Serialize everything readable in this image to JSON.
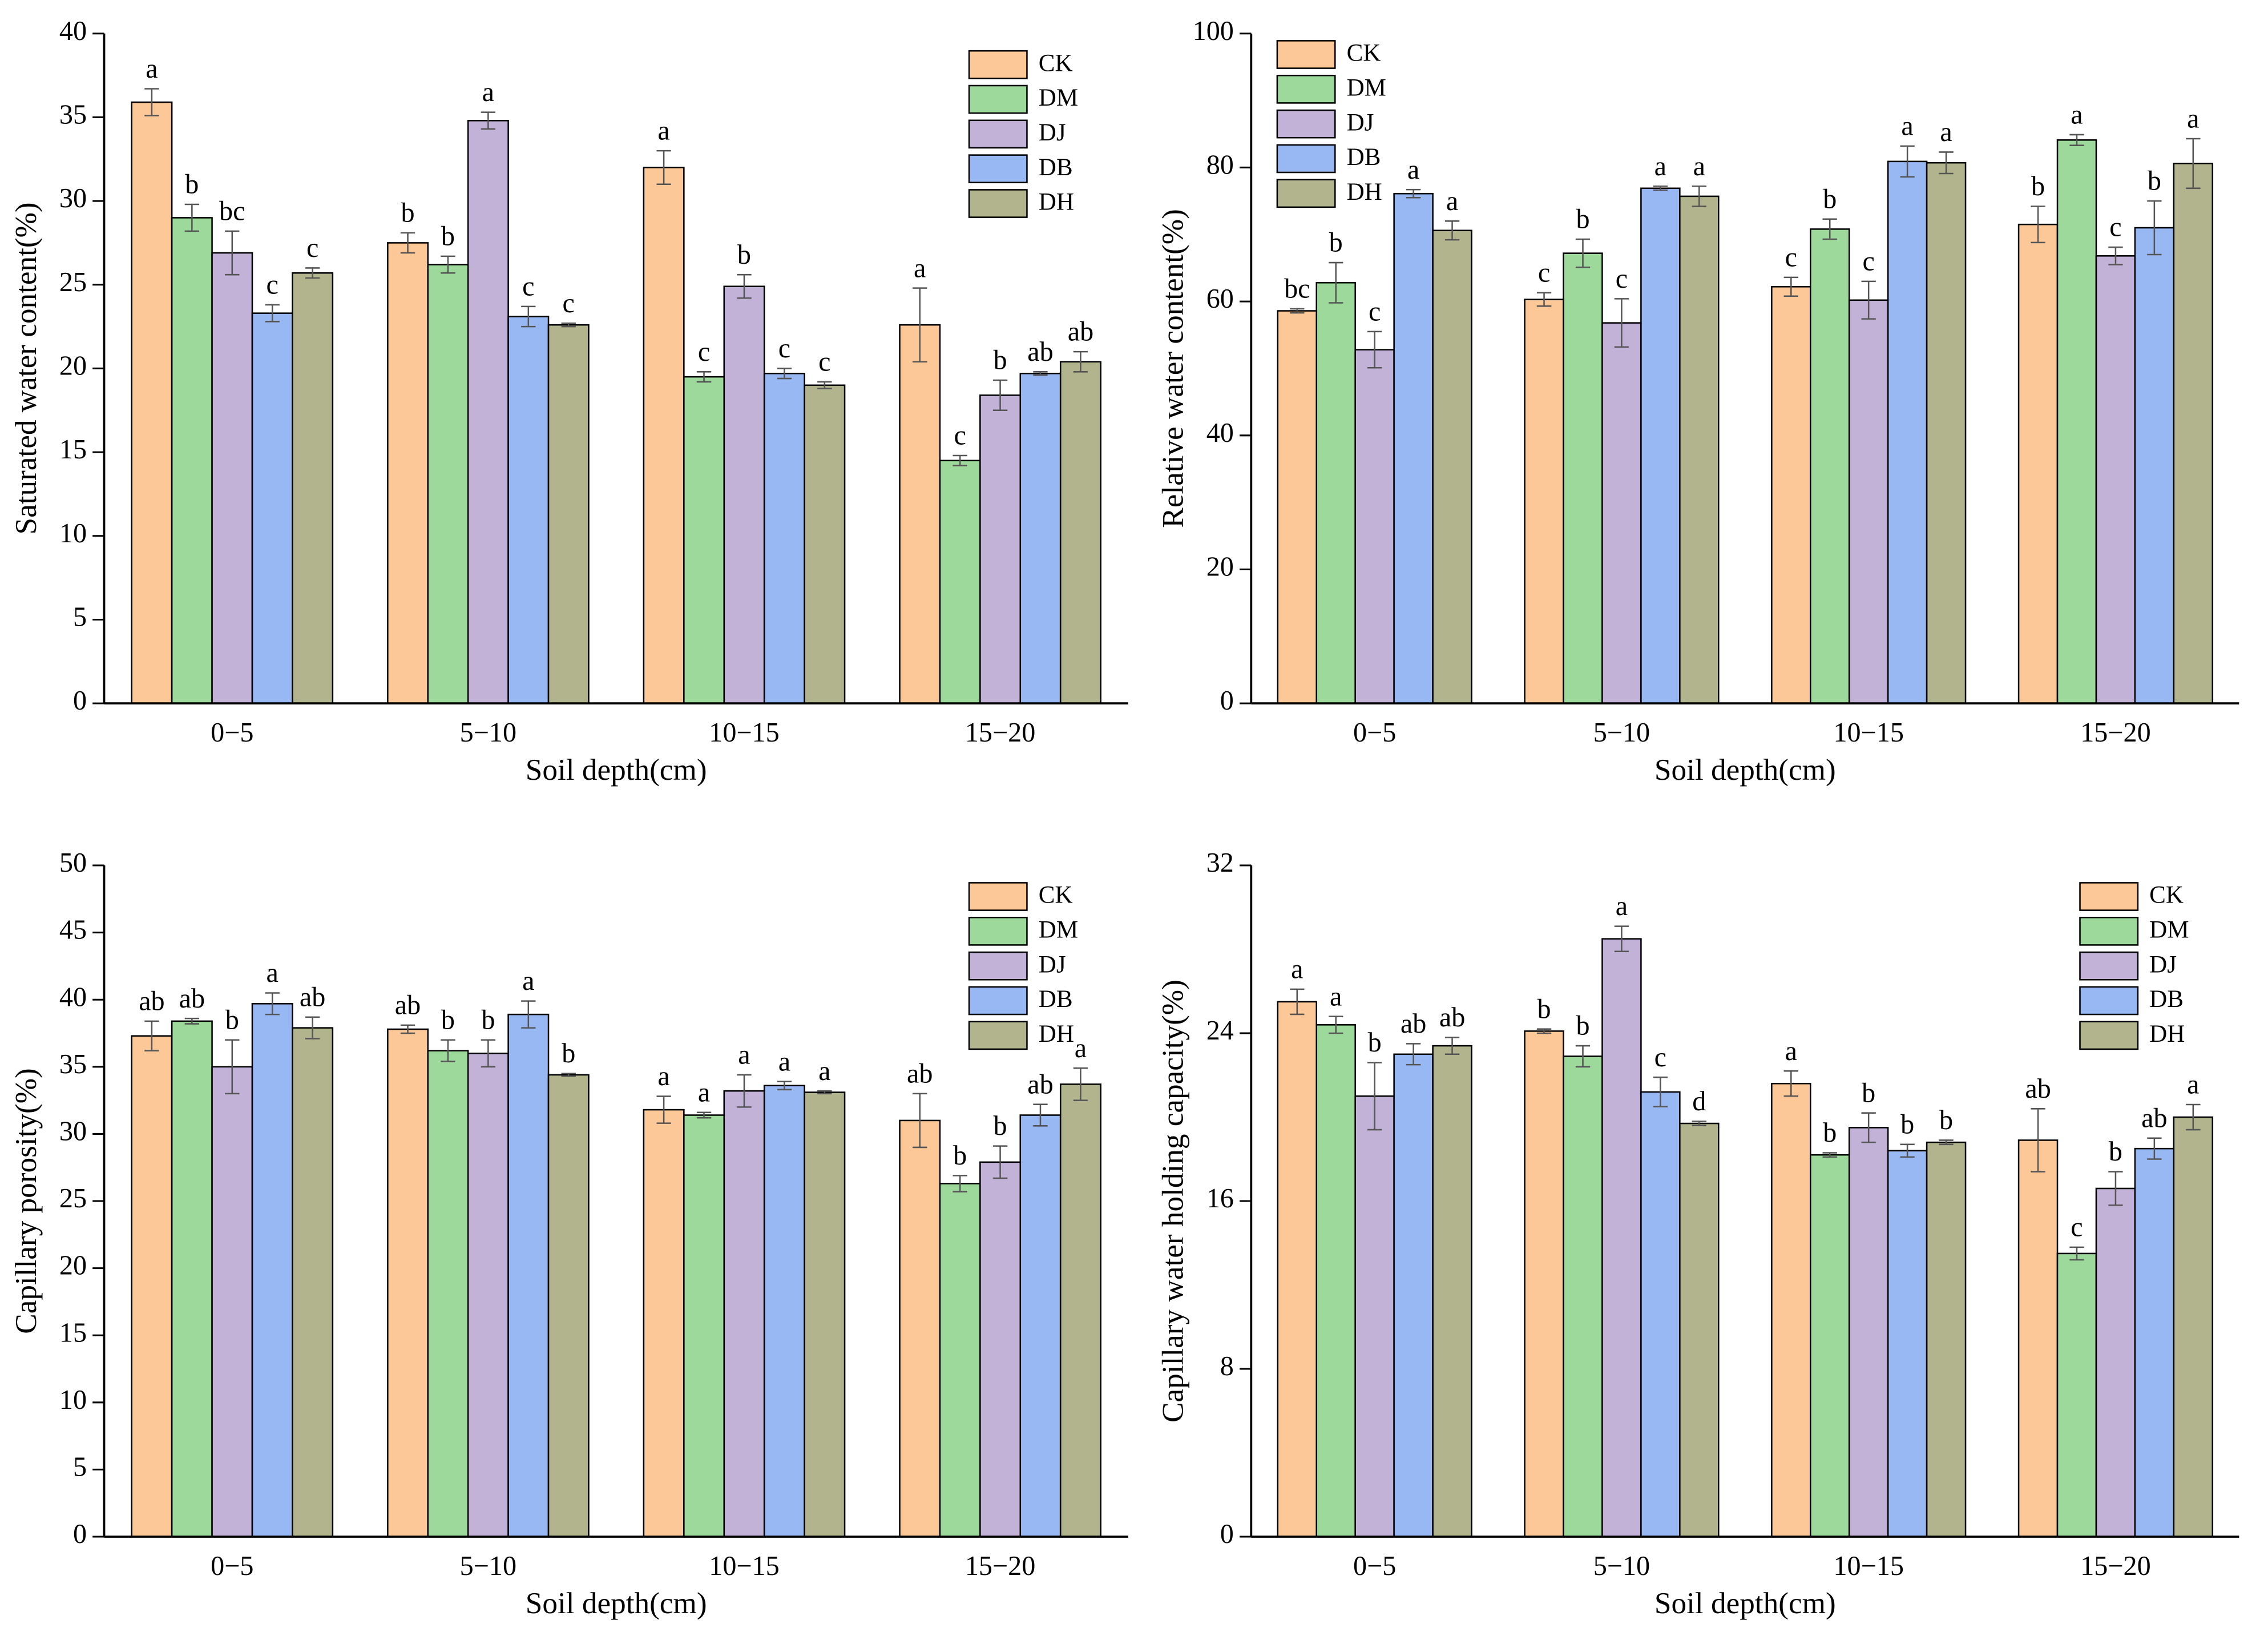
{
  "chart_data": [
    {
      "type": "bar",
      "ylabel": "Saturated water content(%)",
      "xlabel": "Soil depth(cm)",
      "categories": [
        "0−5",
        "5−10",
        "10−15",
        "15−20"
      ],
      "ylim": [
        0,
        40
      ],
      "yticks": [
        0,
        5,
        10,
        15,
        20,
        25,
        30,
        35,
        40
      ],
      "legend": "upper right",
      "series": [
        {
          "name": "CK",
          "color": "#fdc897",
          "values": [
            35.9,
            27.5,
            32.0,
            22.6
          ],
          "errors": [
            0.8,
            0.6,
            1.0,
            2.2
          ],
          "letters": [
            "a",
            "b",
            "a",
            "a"
          ]
        },
        {
          "name": "DM",
          "color": "#9cd99b",
          "values": [
            29.0,
            26.2,
            19.5,
            14.5
          ],
          "errors": [
            0.8,
            0.5,
            0.3,
            0.3
          ],
          "letters": [
            "b",
            "b",
            "c",
            "c"
          ]
        },
        {
          "name": "DJ",
          "color": "#c2b2d8",
          "values": [
            26.9,
            34.8,
            24.9,
            18.4
          ],
          "errors": [
            1.3,
            0.5,
            0.7,
            0.9
          ],
          "letters": [
            "bc",
            "a",
            "b",
            "b"
          ]
        },
        {
          "name": "DB",
          "color": "#98b8f4",
          "values": [
            23.3,
            23.1,
            19.7,
            19.7
          ],
          "errors": [
            0.5,
            0.6,
            0.3,
            0.1
          ],
          "letters": [
            "c",
            "c",
            "c",
            "ab"
          ]
        },
        {
          "name": "DH",
          "color": "#b2b48d",
          "values": [
            25.7,
            22.6,
            19.0,
            20.4
          ],
          "errors": [
            0.3,
            0.1,
            0.2,
            0.6
          ],
          "letters": [
            "c",
            "c",
            "c",
            "ab"
          ]
        }
      ]
    },
    {
      "type": "bar",
      "ylabel": "Relative water content(%)",
      "xlabel": "Soil depth(cm)",
      "categories": [
        "0−5",
        "5−10",
        "10−15",
        "15−20"
      ],
      "ylim": [
        0,
        100
      ],
      "yticks": [
        0,
        20,
        40,
        60,
        80,
        100
      ],
      "legend": "upper left",
      "series": [
        {
          "name": "CK",
          "color": "#fdc897",
          "values": [
            58.6,
            60.3,
            62.2,
            71.5
          ],
          "errors": [
            0.3,
            1.0,
            1.4,
            2.7
          ],
          "letters": [
            "bc",
            "c",
            "c",
            "b"
          ]
        },
        {
          "name": "DM",
          "color": "#9cd99b",
          "values": [
            62.8,
            67.2,
            70.8,
            84.1
          ],
          "errors": [
            3.0,
            2.1,
            1.5,
            0.8
          ],
          "letters": [
            "b",
            "b",
            "b",
            "a"
          ]
        },
        {
          "name": "DJ",
          "color": "#c2b2d8",
          "values": [
            52.8,
            56.8,
            60.2,
            66.8
          ],
          "errors": [
            2.7,
            3.6,
            2.8,
            1.3
          ],
          "letters": [
            "c",
            "c",
            "c",
            "c"
          ]
        },
        {
          "name": "DB",
          "color": "#98b8f4",
          "values": [
            76.1,
            76.9,
            80.9,
            71.0
          ],
          "errors": [
            0.6,
            0.3,
            2.3,
            4.0
          ],
          "letters": [
            "a",
            "a",
            "a",
            "b"
          ]
        },
        {
          "name": "DH",
          "color": "#b2b48d",
          "values": [
            70.6,
            75.7,
            80.7,
            80.6
          ],
          "errors": [
            1.4,
            1.5,
            1.6,
            3.7
          ],
          "letters": [
            "a",
            "a",
            "a",
            "a"
          ]
        }
      ]
    },
    {
      "type": "bar",
      "ylabel": "Capillary porosity(%)",
      "xlabel": "Soil depth(cm)",
      "categories": [
        "0−5",
        "5−10",
        "10−15",
        "15−20"
      ],
      "ylim": [
        0,
        50
      ],
      "yticks": [
        0,
        5,
        10,
        15,
        20,
        25,
        30,
        35,
        40,
        45,
        50
      ],
      "legend": "upper right",
      "series": [
        {
          "name": "CK",
          "color": "#fdc897",
          "values": [
            37.3,
            37.8,
            31.8,
            31.0
          ],
          "errors": [
            1.1,
            0.3,
            1.0,
            2.0
          ],
          "letters": [
            "ab",
            "ab",
            "a",
            "ab"
          ]
        },
        {
          "name": "DM",
          "color": "#9cd99b",
          "values": [
            38.4,
            36.2,
            31.4,
            26.3
          ],
          "errors": [
            0.2,
            0.8,
            0.2,
            0.6
          ],
          "letters": [
            "ab",
            "b",
            "a",
            "b"
          ]
        },
        {
          "name": "DJ",
          "color": "#c2b2d8",
          "values": [
            35.0,
            36.0,
            33.2,
            27.9
          ],
          "errors": [
            2.0,
            1.0,
            1.2,
            1.2
          ],
          "letters": [
            "b",
            "b",
            "a",
            "b"
          ]
        },
        {
          "name": "DB",
          "color": "#98b8f4",
          "values": [
            39.7,
            38.9,
            33.6,
            31.4
          ],
          "errors": [
            0.8,
            1.0,
            0.3,
            0.8
          ],
          "letters": [
            "a",
            "a",
            "a",
            "ab"
          ]
        },
        {
          "name": "DH",
          "color": "#b2b48d",
          "values": [
            37.9,
            34.4,
            33.1,
            33.7
          ],
          "errors": [
            0.8,
            0.1,
            0.1,
            1.2
          ],
          "letters": [
            "ab",
            "b",
            "a",
            "a"
          ]
        }
      ]
    },
    {
      "type": "bar",
      "ylabel": "Capillary water holding capacity(%)",
      "xlabel": "Soil depth(cm)",
      "categories": [
        "0−5",
        "5−10",
        "10−15",
        "15−20"
      ],
      "ylim": [
        0,
        32
      ],
      "yticks": [
        0,
        8,
        16,
        24,
        32
      ],
      "legend": "upper right",
      "series": [
        {
          "name": "CK",
          "color": "#fdc897",
          "values": [
            25.5,
            24.1,
            21.6,
            18.9
          ],
          "errors": [
            0.6,
            0.1,
            0.6,
            1.5
          ],
          "letters": [
            "a",
            "b",
            "a",
            "ab"
          ]
        },
        {
          "name": "DM",
          "color": "#9cd99b",
          "values": [
            24.4,
            22.9,
            18.2,
            13.5
          ],
          "errors": [
            0.4,
            0.5,
            0.1,
            0.3
          ],
          "letters": [
            "a",
            "b",
            "b",
            "c"
          ]
        },
        {
          "name": "DJ",
          "color": "#c2b2d8",
          "values": [
            21.0,
            28.5,
            19.5,
            16.6
          ],
          "errors": [
            1.6,
            0.6,
            0.7,
            0.8
          ],
          "letters": [
            "b",
            "a",
            "b",
            "b"
          ]
        },
        {
          "name": "DB",
          "color": "#98b8f4",
          "values": [
            23.0,
            21.2,
            18.4,
            18.5
          ],
          "errors": [
            0.5,
            0.7,
            0.3,
            0.5
          ],
          "letters": [
            "ab",
            "c",
            "b",
            "ab"
          ]
        },
        {
          "name": "DH",
          "color": "#b2b48d",
          "values": [
            23.4,
            19.7,
            18.8,
            20.0
          ],
          "errors": [
            0.4,
            0.1,
            0.1,
            0.6
          ],
          "letters": [
            "ab",
            "d",
            "b",
            "a"
          ]
        }
      ]
    }
  ]
}
